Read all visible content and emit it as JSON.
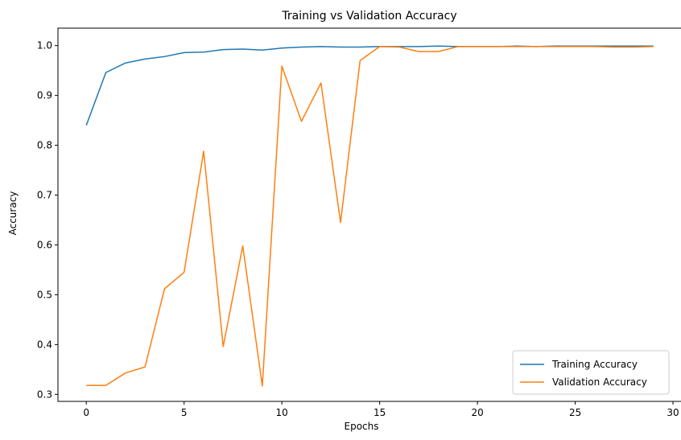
{
  "chart_data": {
    "type": "line",
    "title": "Training vs Validation Accuracy",
    "xlabel": "Epochs",
    "ylabel": "Accuracy",
    "xlim": [
      -1.45,
      30.45
    ],
    "ylim": [
      0.286,
      1.035
    ],
    "xticks": [
      0,
      5,
      10,
      15,
      20,
      25,
      30
    ],
    "yticks": [
      0.3,
      0.4,
      0.5,
      0.6,
      0.7,
      0.8,
      0.9,
      1.0
    ],
    "xtick_labels": [
      "0",
      "5",
      "10",
      "15",
      "20",
      "25",
      "30"
    ],
    "ytick_labels": [
      "0.3",
      "0.4",
      "0.5",
      "0.6",
      "0.7",
      "0.8",
      "0.9",
      "1.0"
    ],
    "grid": false,
    "legend_position": "lower-right",
    "x": [
      0,
      1,
      2,
      3,
      4,
      5,
      6,
      7,
      8,
      9,
      10,
      11,
      12,
      13,
      14,
      15,
      16,
      17,
      18,
      19,
      20,
      21,
      22,
      23,
      24,
      25,
      26,
      27,
      28,
      29
    ],
    "series": [
      {
        "name": "Training Accuracy",
        "color": "#1f77b4",
        "values": [
          0.84,
          0.946,
          0.965,
          0.973,
          0.978,
          0.986,
          0.987,
          0.992,
          0.993,
          0.991,
          0.995,
          0.997,
          0.998,
          0.997,
          0.997,
          0.998,
          0.998,
          0.998,
          0.999,
          0.998,
          0.998,
          0.998,
          0.999,
          0.998,
          0.999,
          0.999,
          0.999,
          0.999,
          0.999,
          0.999
        ]
      },
      {
        "name": "Validation Accuracy",
        "color": "#ff7f0e",
        "values": [
          0.318,
          0.318,
          0.343,
          0.355,
          0.512,
          0.545,
          0.788,
          0.396,
          0.598,
          0.317,
          0.959,
          0.848,
          0.925,
          0.645,
          0.97,
          0.998,
          0.997,
          0.988,
          0.988,
          0.998,
          0.998,
          0.998,
          0.998,
          0.998,
          0.998,
          0.998,
          0.998,
          0.997,
          0.997,
          0.998
        ]
      }
    ]
  }
}
